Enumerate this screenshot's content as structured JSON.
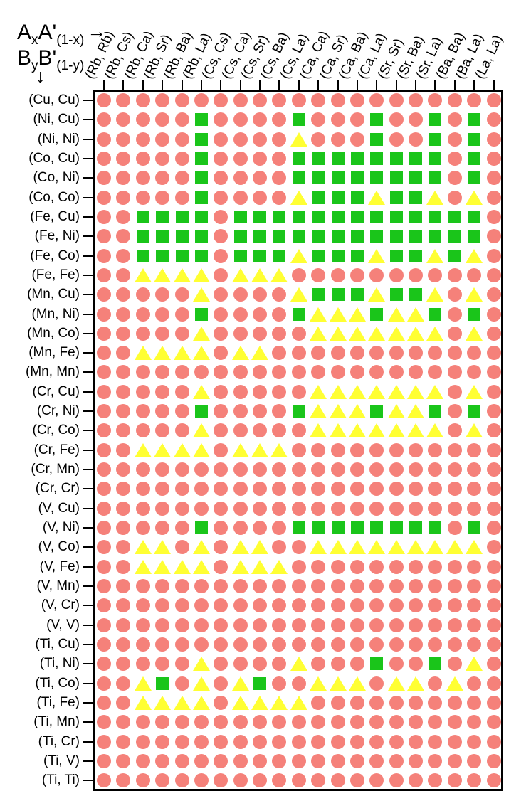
{
  "axes": {
    "x_formula": {
      "base1": "A",
      "sub1": "x",
      "base2": "A'",
      "sub2": "(1-x)"
    },
    "y_formula": {
      "base1": "B",
      "sub1": "y",
      "base2": "B'",
      "sub2": "(1-y)"
    },
    "x_arrow": "→",
    "y_arrow": "↓"
  },
  "chart_data": {
    "type": "heatmap",
    "title": "",
    "xlabel": "AxA'(1-x)",
    "ylabel": "ByB'(1-y)",
    "legend_position": "none",
    "grid": false,
    "columns": [
      "(Rb, Rb)",
      "(Rb, Cs)",
      "(Rb, Ca)",
      "(Rb, Sr)",
      "(Rb, Ba)",
      "(Rb, La)",
      "(Cs, Cs)",
      "(Cs, Ca)",
      "(Cs, Sr)",
      "(Cs, Ba)",
      "(Cs, La)",
      "(Ca, Ca)",
      "(Ca, Sr)",
      "(Ca, Ba)",
      "(Ca, La)",
      "(Sr, Sr)",
      "(Sr, Ba)",
      "(Sr, La)",
      "(Ba, Ba)",
      "(Ba, La)",
      "(La, La)"
    ],
    "rows": [
      "(Cu, Cu)",
      "(Ni, Cu)",
      "(Ni, Ni)",
      "(Co, Cu)",
      "(Co, Ni)",
      "(Co, Co)",
      "(Fe, Cu)",
      "(Fe, Ni)",
      "(Fe, Co)",
      "(Fe, Fe)",
      "(Mn, Cu)",
      "(Mn, Ni)",
      "(Mn, Co)",
      "(Mn, Fe)",
      "(Mn, Mn)",
      "(Cr, Cu)",
      "(Cr, Ni)",
      "(Cr, Co)",
      "(Cr, Fe)",
      "(Cr, Mn)",
      "(Cr, Cr)",
      "(V, Cu)",
      "(V, Ni)",
      "(V, Co)",
      "(V, Fe)",
      "(V, Mn)",
      "(V, Cr)",
      "(V, V)",
      "(Ti, Cu)",
      "(Ti, Ni)",
      "(Ti, Co)",
      "(Ti, Fe)",
      "(Ti, Mn)",
      "(Ti, Cr)",
      "(Ti, V)",
      "(Ti, Ti)"
    ],
    "symbols": {
      "C": {
        "name": "red-circle",
        "shape": "circle",
        "color": "#F5817A"
      },
      "S": {
        "name": "green-square",
        "shape": "square",
        "color": "#1AC51A"
      },
      "T": {
        "name": "yellow-triangle",
        "shape": "triangle",
        "color": "#FFFF33"
      }
    },
    "matrix": [
      "CCCCCCCCCCCCCCCCCCCCC",
      "CCCCCSCCCCSCCCSCCSCSC",
      "CCCCCSCCCCTCCCSCCSCSC",
      "CCCCCSCCCCSSSSSSSSCSC",
      "CCCCCSCCCCSSSSSSSSCSC",
      "CCCCCSCCCCTSSSTSSTCTC",
      "CCSSSSCSSSSSSSSSSSSSC",
      "CCSSSSCSSSSSSSSSSSSSC",
      "CCSSSSCSSSTSSSTSSTSTC",
      "CCTTTTCTTTCCCCCCCCCCC",
      "CCCCCTCCCCTSSSTSSTCTC",
      "CCCCCSCCCCSTTTSTTSCSC",
      "CCCCCTCCCCCTTTTTTTCTC",
      "CCTTTTCTTCCCCCCCCCCCC",
      "CCCCCCCCCCCCCCCCCCCCC",
      "CCCCCTCCCCCTTTTTTTCTC",
      "CCCCCSCCCCSTTTSTTSCSC",
      "CCCCCTCCCCCTTTTTTTCTC",
      "CCTTTTCTTTCCCCCCCCCCC",
      "CCCCCCCCCCCCCCCCCCCCC",
      "CCCCCCCCCCCCCCCCCCCCC",
      "CCCCCCCCCCCCCCCCCCCCC",
      "CCCCCSCCCCSSSSSSSSCSC",
      "CCTTCTCTTCCTTTTTTTTTC",
      "CCTTTTCTTTCCCCCCCCCCC",
      "CCCCCCCCCCCCCCCCCCCCC",
      "CCCCCCCCCCCCCCCCCCCCC",
      "CCCCCCCCCCCCCCCCCCCCC",
      "CCCCCCCCCCCCCCCCCCCCC",
      "CCCCCTCCCCTCCCSCCSCTC",
      "CCTSCTCTSCCTTTCTTCTCC",
      "CCTTTTCTTTTCCCCCCCCCC",
      "CCCCCCCCCCCCCCCCCCCCC",
      "CCCCCCCCCCCCCCCCCCCCC",
      "CCCCCCCCCCCCCCCCCCCCC",
      "CCCCCCCCCCCCCCCCCCCCC"
    ]
  }
}
